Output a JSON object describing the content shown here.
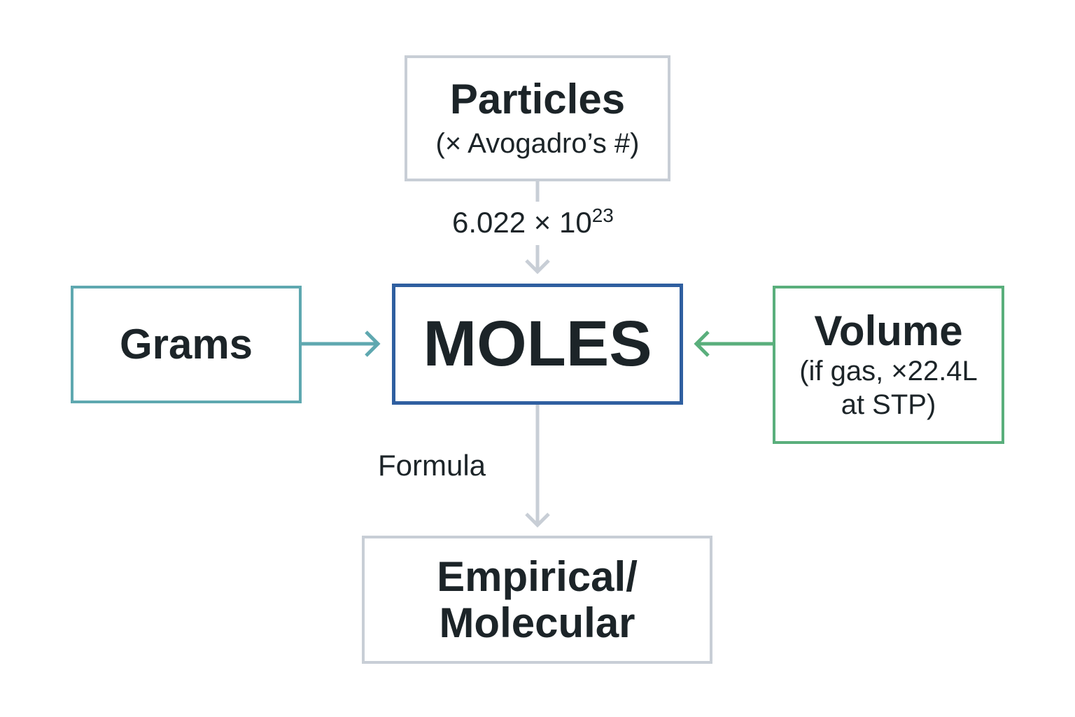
{
  "nodes": {
    "particles": {
      "title": "Particles",
      "subtitle": "(× Avogadro’s #)"
    },
    "grams": {
      "title": "Grams"
    },
    "moles": {
      "title": "MOLES"
    },
    "volume": {
      "title": "Volume",
      "subtitle_line1": "(if gas, ×22.4L",
      "subtitle_line2": "at STP)"
    },
    "formula": {
      "title_line1": "Empirical/",
      "title_line2": "Molecular"
    }
  },
  "edges": {
    "particles_to_moles": {
      "label_base": "6.022 × 10",
      "label_exp": "23"
    },
    "moles_to_formula": {
      "label": "Formula"
    }
  },
  "colors": {
    "grey": "#c8ced6",
    "teal": "#5fa8b0",
    "blue": "#2f5fa0",
    "green": "#5aaf7c",
    "text": "#1c2428"
  }
}
